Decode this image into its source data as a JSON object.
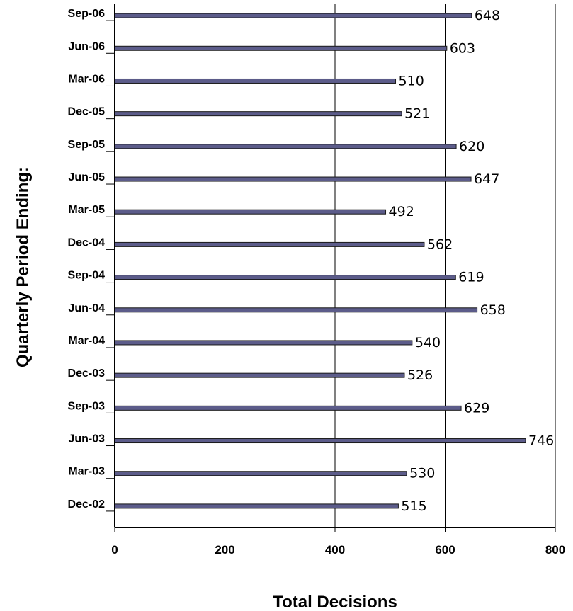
{
  "chart_data": {
    "type": "bar",
    "orientation": "horizontal",
    "categories": [
      "Dec-02",
      "Mar-03",
      "Jun-03",
      "Sep-03",
      "Dec-03",
      "Mar-04",
      "Jun-04",
      "Sep-04",
      "Dec-04",
      "Mar-05",
      "Jun-05",
      "Sep-05",
      "Dec-05",
      "Mar-06",
      "Jun-06",
      "Sep-06"
    ],
    "values": [
      515,
      530,
      746,
      629,
      526,
      540,
      658,
      619,
      562,
      492,
      647,
      620,
      521,
      510,
      603,
      648
    ],
    "xlabel": "Total Decisions",
    "ylabel": "Quarterly Period Ending:",
    "xlim": [
      0,
      800
    ],
    "xticks": [
      0,
      200,
      400,
      600,
      800
    ],
    "grid": "vertical",
    "legend": "none",
    "colors": {
      "bar": "#5c5c8a",
      "bar_edge": "#1a1a1a",
      "grid": "#000000"
    }
  }
}
